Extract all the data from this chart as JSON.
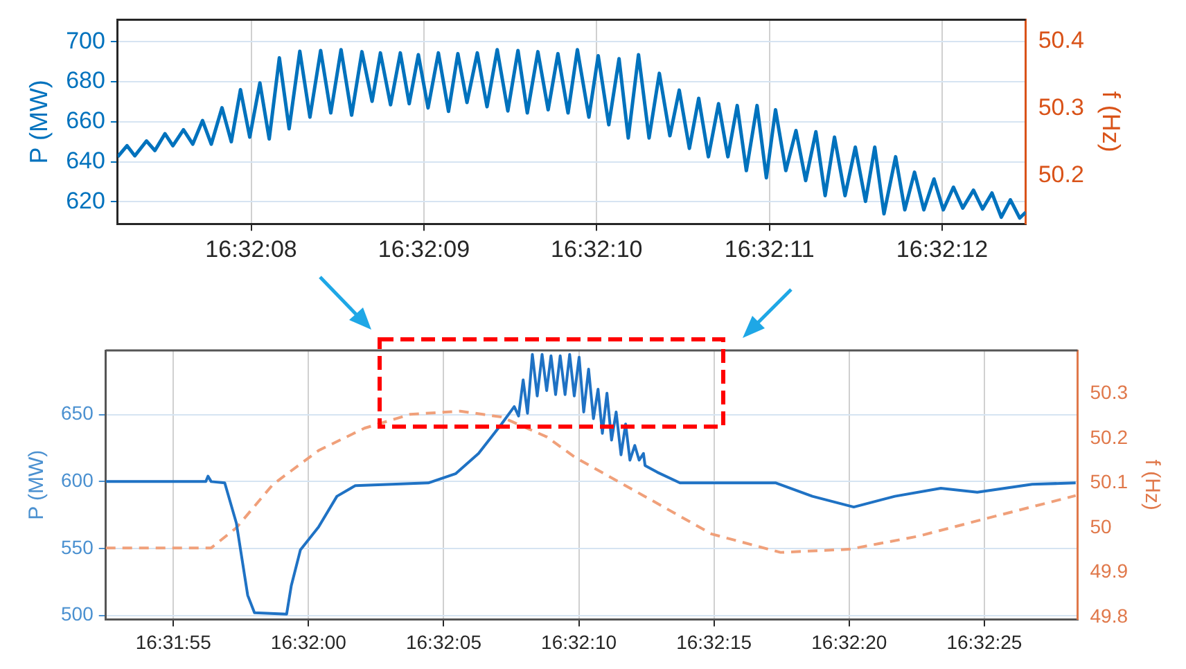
{
  "chart_data": [
    {
      "type": "line",
      "ylabel": "P (MW)",
      "y2label": "f (Hz)",
      "xlim": [
        16.535341,
        16.536801
      ],
      "xticks": [
        {
          "value": 16.53555556,
          "label": "16:32:08"
        },
        {
          "value": 16.53583333,
          "label": "16:32:09"
        },
        {
          "value": 16.53611111,
          "label": "16:32:10"
        },
        {
          "value": 16.53638889,
          "label": "16:32:11"
        },
        {
          "value": 16.53666667,
          "label": "16:32:12"
        }
      ],
      "ylim": [
        609,
        711
      ],
      "yticks": [
        620,
        640,
        660,
        680,
        700
      ],
      "y2lim": [
        50.129,
        50.432
      ],
      "y2ticks": [
        50.2,
        50.3,
        50.4
      ],
      "grid": true,
      "legend": false,
      "marker": "none",
      "series": [
        {
          "color": "#0072bd",
          "x": [
            16.535341,
            16.535356,
            16.5353685,
            16.5353873,
            16.5354007,
            16.535417,
            16.5354297,
            16.5354467,
            16.5354617,
            16.5354774,
            16.5354914,
            16.5355087,
            16.5355236,
            16.5355384,
            16.5355533,
            16.5355696,
            16.5355846,
            16.5356009,
            16.5356166,
            16.5356338,
            16.5356501,
            16.5356673,
            16.5356836,
            16.5357001,
            16.5357171,
            16.5357337,
            16.53575,
            16.5357634,
            16.5357797,
            16.5357954,
            16.5358097,
            16.5358244,
            16.53584,
            16.5358566,
            16.5358729,
            16.5358879,
            16.5359026,
            16.5359192,
            16.5359348,
            16.5359512,
            16.5359683,
            16.5359846,
            16.5359996,
            16.5360166,
            16.5360331,
            16.5360488,
            16.5360651,
            16.5360801,
            16.5360986,
            16.5361136,
            16.5361306,
            16.5361471,
            16.5361619,
            16.5361784,
            16.5361954,
            16.5362119,
            16.5362289,
            16.5362439,
            16.5362602,
            16.5362752,
            16.5362908,
            16.5363071,
            16.5363221,
            16.5363371,
            16.5363518,
            16.536369,
            16.536384,
            16.5363987,
            16.5364153,
            16.5364316,
            16.5364472,
            16.5364636,
            16.5364785,
            16.5364935,
            16.5365105,
            16.536527,
            16.5365434,
            16.5365583,
            16.5365731,
            16.5365918,
            16.5366066,
            16.5366222,
            16.5366372,
            16.5366535,
            16.5366685,
            16.5366848,
            16.5366998,
            16.536717,
            16.5367317,
            16.5367467,
            16.5367617,
            16.5367764,
            16.5367914,
            16.536801
          ],
          "values": [
            642.5,
            648,
            643,
            650.4,
            645.6,
            654,
            648,
            656,
            648.8,
            660.6,
            648.8,
            667,
            650,
            676,
            652.3,
            679.4,
            651.4,
            691.9,
            656.5,
            695.2,
            662.3,
            695.6,
            664.4,
            696,
            663.3,
            695,
            670.2,
            694.4,
            668.5,
            694.4,
            669,
            693.5,
            666.9,
            694.4,
            665.2,
            694,
            669.6,
            694.4,
            667.5,
            696,
            665.4,
            695.6,
            664.4,
            695,
            666,
            694,
            664.4,
            696,
            662.3,
            693,
            658.5,
            691.5,
            651.9,
            693.5,
            651.9,
            684.2,
            653,
            675.8,
            646.7,
            671.7,
            642.5,
            669,
            642.5,
            668.1,
            635.6,
            668.1,
            632,
            666,
            635.6,
            655.6,
            630.6,
            655,
            623.1,
            652.3,
            623.1,
            647.3,
            620.2,
            647.3,
            614,
            642.5,
            616,
            634.8,
            616,
            631.4,
            616,
            627.3,
            616.9,
            625.8,
            616.4,
            624.4,
            612.3,
            621,
            611.9,
            614.8
          ]
        }
      ]
    },
    {
      "type": "line",
      "ylabel": "P (MW)",
      "y2label": "f (Hz)",
      "xlim": [
        16.53125,
        16.54123611
      ],
      "xticks": [
        {
          "value": 16.53194444,
          "label": "16:31:55"
        },
        {
          "value": 16.53333333,
          "label": "16:32:00"
        },
        {
          "value": 16.53472222,
          "label": "16:32:05"
        },
        {
          "value": 16.53611111,
          "label": "16:32:10"
        },
        {
          "value": 16.5375,
          "label": "16:32:15"
        },
        {
          "value": 16.53888889,
          "label": "16:32:20"
        },
        {
          "value": 16.54027778,
          "label": "16:32:25"
        }
      ],
      "ylim": [
        497,
        698
      ],
      "yticks": [
        500,
        550,
        600,
        650
      ],
      "y2lim": [
        49.795,
        50.397
      ],
      "y2ticks": [
        49.8,
        49.9,
        50,
        50.1,
        50.2,
        50.3
      ],
      "grid": true,
      "legend": false,
      "marker": "none",
      "series": [
        {
          "color": "#1f72c4",
          "x": [
            16.53125,
            16.53227778,
            16.5323,
            16.53233333,
            16.53247222,
            16.53259167,
            16.53270833,
            16.53277778,
            16.53310833,
            16.53315556,
            16.53325,
            16.53343611,
            16.533625,
            16.53381389,
            16.53456389,
            16.53484722,
            16.53508056,
            16.53531667,
            16.53544722,
            16.53549167,
            16.53553889,
            16.53558333,
            16.53563333,
            16.53568333,
            16.53573333,
            16.53578056,
            16.535825,
            16.53587222,
            16.53591944,
            16.53596944,
            16.53601667,
            16.53606389,
            16.53611389,
            16.53616111,
            16.53621111,
            16.53626111,
            16.53630833,
            16.53635278,
            16.5364,
            16.53644722,
            16.53649444,
            16.53654444,
            16.53659167,
            16.53663611,
            16.53668611,
            16.53673056,
            16.536775,
            16.53679167,
            16.53691667,
            16.53715,
            16.53813611,
            16.53851111,
            16.53893611,
            16.53935833,
            16.53983056,
            16.54020556,
            16.54076944,
            16.54121667
          ],
          "values": [
            600,
            600,
            604,
            600,
            599,
            569,
            515,
            502,
            501,
            522,
            549,
            566,
            589,
            597,
            599,
            606,
            621,
            643,
            656,
            649,
            676,
            651,
            695,
            664,
            695,
            668,
            694,
            665,
            694,
            665,
            695,
            664,
            693,
            652,
            684,
            647,
            669,
            636,
            666,
            631,
            652,
            620,
            643,
            616,
            627,
            616,
            621,
            612,
            607,
            599,
            599,
            589,
            581,
            589,
            595,
            592,
            598,
            599
          ]
        },
        {
          "color": "#f0a07a",
          "axis": "y2",
          "line_style": "dashed",
          "x": [
            16.53125,
            16.53233333,
            16.53259167,
            16.53296667,
            16.53343611,
            16.53390833,
            16.53437778,
            16.53489444,
            16.53531667,
            16.53578611,
            16.53606944,
            16.536775,
            16.53747778,
            16.53818333,
            16.53888889,
            16.53959444,
            16.5403,
            16.54121667
          ],
          "values": [
            49.955,
            49.955,
            50,
            50.097,
            50.173,
            50.223,
            50.254,
            50.261,
            50.248,
            50.203,
            50.158,
            50.072,
            49.986,
            49.945,
            49.952,
            49.981,
            50.021,
            50.072
          ]
        }
      ]
    }
  ]
}
